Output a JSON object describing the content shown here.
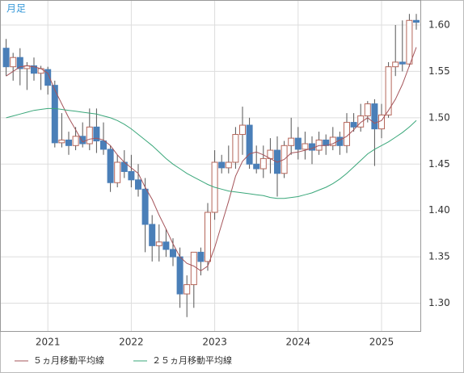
{
  "chart_data": {
    "type": "candlestick",
    "title": "月足",
    "categories": [
      null,
      null,
      null,
      null,
      null,
      null,
      "2021",
      null,
      null,
      null,
      null,
      null,
      null,
      null,
      null,
      null,
      null,
      null,
      "2022",
      null,
      null,
      null,
      null,
      null,
      null,
      null,
      null,
      null,
      null,
      null,
      "2023",
      null,
      null,
      null,
      null,
      null,
      null,
      null,
      null,
      null,
      null,
      null,
      "2024",
      null,
      null,
      null,
      null,
      null,
      null,
      null,
      null,
      null,
      null,
      null,
      "2025",
      null,
      null,
      null,
      null,
      null
    ],
    "open": [
      1.575,
      1.555,
      1.565,
      1.553,
      1.556,
      1.548,
      1.552,
      1.535,
      1.473,
      1.476,
      1.47,
      1.48,
      1.472,
      1.49,
      1.475,
      1.466,
      1.43,
      1.452,
      1.442,
      1.433,
      1.423,
      1.385,
      1.362,
      1.366,
      1.358,
      1.35,
      1.31,
      1.32,
      1.355,
      1.345,
      1.398,
      1.452,
      1.446,
      1.452,
      1.482,
      1.492,
      1.45,
      1.445,
      1.456,
      1.465,
      1.44,
      1.47,
      1.478,
      1.466,
      1.472,
      1.465,
      1.476,
      1.47,
      1.479,
      1.47,
      1.495,
      1.49,
      1.502,
      1.515,
      1.488,
      1.503,
      1.555,
      1.56,
      1.558,
      1.605
    ],
    "high": [
      1.585,
      1.57,
      1.575,
      1.56,
      1.565,
      1.556,
      1.555,
      1.54,
      1.505,
      1.485,
      1.49,
      1.495,
      1.51,
      1.51,
      1.495,
      1.47,
      1.46,
      1.465,
      1.46,
      1.45,
      1.435,
      1.395,
      1.385,
      1.38,
      1.37,
      1.36,
      1.33,
      1.355,
      1.36,
      1.408,
      1.465,
      1.46,
      1.47,
      1.49,
      1.512,
      1.5,
      1.47,
      1.47,
      1.478,
      1.48,
      1.475,
      1.5,
      1.49,
      1.485,
      1.48,
      1.485,
      1.482,
      1.49,
      1.485,
      1.505,
      1.505,
      1.515,
      1.518,
      1.52,
      1.515,
      1.56,
      1.6,
      1.605,
      1.612,
      1.612
    ],
    "low": [
      1.545,
      1.54,
      1.535,
      1.53,
      1.54,
      1.53,
      1.525,
      1.468,
      1.468,
      1.46,
      1.465,
      1.468,
      1.465,
      1.462,
      1.46,
      1.42,
      1.425,
      1.435,
      1.425,
      1.415,
      1.355,
      1.345,
      1.345,
      1.35,
      1.34,
      1.295,
      1.285,
      1.295,
      1.33,
      1.335,
      1.39,
      1.44,
      1.44,
      1.445,
      1.46,
      1.445,
      1.44,
      1.435,
      1.44,
      1.415,
      1.435,
      1.46,
      1.455,
      1.455,
      1.45,
      1.46,
      1.46,
      1.465,
      1.46,
      1.462,
      1.485,
      1.485,
      1.495,
      1.448,
      1.478,
      1.5,
      1.545,
      1.55,
      1.555,
      1.595
    ],
    "close": [
      1.555,
      1.565,
      1.553,
      1.556,
      1.548,
      1.553,
      1.535,
      1.473,
      1.476,
      1.47,
      1.48,
      1.472,
      1.49,
      1.475,
      1.466,
      1.43,
      1.452,
      1.442,
      1.433,
      1.423,
      1.385,
      1.362,
      1.366,
      1.358,
      1.35,
      1.31,
      1.32,
      1.355,
      1.345,
      1.398,
      1.452,
      1.446,
      1.452,
      1.482,
      1.492,
      1.45,
      1.445,
      1.456,
      1.465,
      1.44,
      1.47,
      1.478,
      1.466,
      1.472,
      1.465,
      1.476,
      1.47,
      1.479,
      1.47,
      1.495,
      1.49,
      1.502,
      1.515,
      1.488,
      1.503,
      1.555,
      1.56,
      1.558,
      1.605,
      1.603
    ],
    "up_color": "#b5665a",
    "down_color": "#4a7fb8",
    "series": [
      {
        "name": "５ヵ月移動平均線",
        "color": "#a5545a",
        "values": [
          1.545,
          1.55,
          1.555,
          1.556,
          1.555,
          1.553,
          1.548,
          1.53,
          1.515,
          1.5,
          1.487,
          1.474,
          1.477,
          1.478,
          1.476,
          1.47,
          1.46,
          1.452,
          1.446,
          1.44,
          1.425,
          1.412,
          1.395,
          1.38,
          1.364,
          1.35,
          1.343,
          1.34,
          1.335,
          1.34,
          1.36,
          1.385,
          1.41,
          1.437,
          1.453,
          1.461,
          1.463,
          1.46,
          1.456,
          1.452,
          1.455,
          1.462,
          1.463,
          1.465,
          1.467,
          1.47,
          1.47,
          1.472,
          1.476,
          1.48,
          1.487,
          1.495,
          1.5,
          1.494,
          1.497,
          1.508,
          1.52,
          1.536,
          1.556,
          1.576
        ]
      },
      {
        "name": "２５ヵ月移動平均線",
        "color": "#3aa77a",
        "values": [
          1.5,
          1.502,
          1.504,
          1.506,
          1.508,
          1.509,
          1.51,
          1.51,
          1.509,
          1.508,
          1.507,
          1.506,
          1.505,
          1.504,
          1.502,
          1.5,
          1.497,
          1.493,
          1.488,
          1.482,
          1.476,
          1.47,
          1.463,
          1.456,
          1.45,
          1.445,
          1.44,
          1.436,
          1.432,
          1.428,
          1.425,
          1.423,
          1.421,
          1.42,
          1.419,
          1.418,
          1.417,
          1.416,
          1.414,
          1.413,
          1.413,
          1.414,
          1.415,
          1.417,
          1.419,
          1.422,
          1.425,
          1.429,
          1.434,
          1.44,
          1.447,
          1.454,
          1.461,
          1.466,
          1.47,
          1.474,
          1.479,
          1.484,
          1.49,
          1.497
        ]
      }
    ],
    "ylim": [
      1.27,
      1.627
    ],
    "yticks": [
      {
        "value": 1.3,
        "label": "1.30"
      },
      {
        "value": 1.35,
        "label": "1.35"
      },
      {
        "value": 1.4,
        "label": "1.40"
      },
      {
        "value": 1.45,
        "label": "1.45"
      },
      {
        "value": 1.5,
        "label": "1.50"
      },
      {
        "value": 1.55,
        "label": "1.55"
      },
      {
        "value": 1.6,
        "label": "1.60"
      }
    ],
    "grid": true
  }
}
